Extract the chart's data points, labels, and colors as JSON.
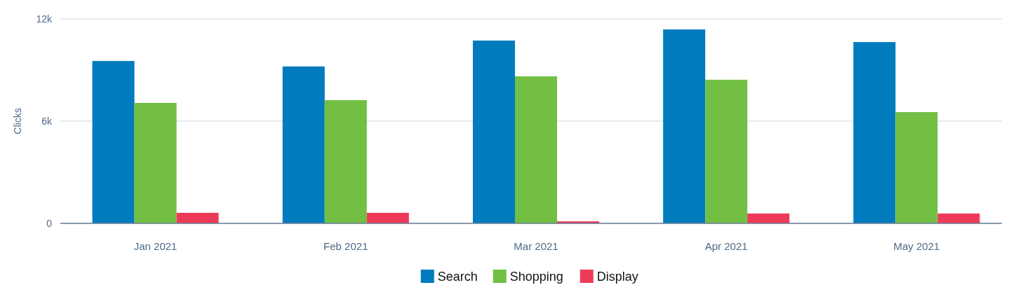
{
  "chart_data": {
    "type": "bar",
    "ylabel": "Clicks",
    "categories": [
      "Jan 2021",
      "Feb 2021",
      "Mar 2021",
      "Apr 2021",
      "May 2021"
    ],
    "series": [
      {
        "name": "Search",
        "color": "#007bbd",
        "values": [
          9530,
          9210,
          10730,
          11380,
          10640
        ]
      },
      {
        "name": "Shopping",
        "color": "#72bf44",
        "values": [
          7070,
          7230,
          8630,
          8430,
          6530
        ]
      },
      {
        "name": "Display",
        "color": "#ee3a59",
        "values": [
          620,
          620,
          120,
          580,
          580
        ]
      }
    ],
    "ylim": [
      0,
      12000
    ],
    "yticks": [
      {
        "value": 0,
        "label": "0"
      },
      {
        "value": 6000,
        "label": "6k"
      },
      {
        "value": 12000,
        "label": "12k"
      }
    ],
    "grid": "y",
    "legend": "bottom"
  }
}
